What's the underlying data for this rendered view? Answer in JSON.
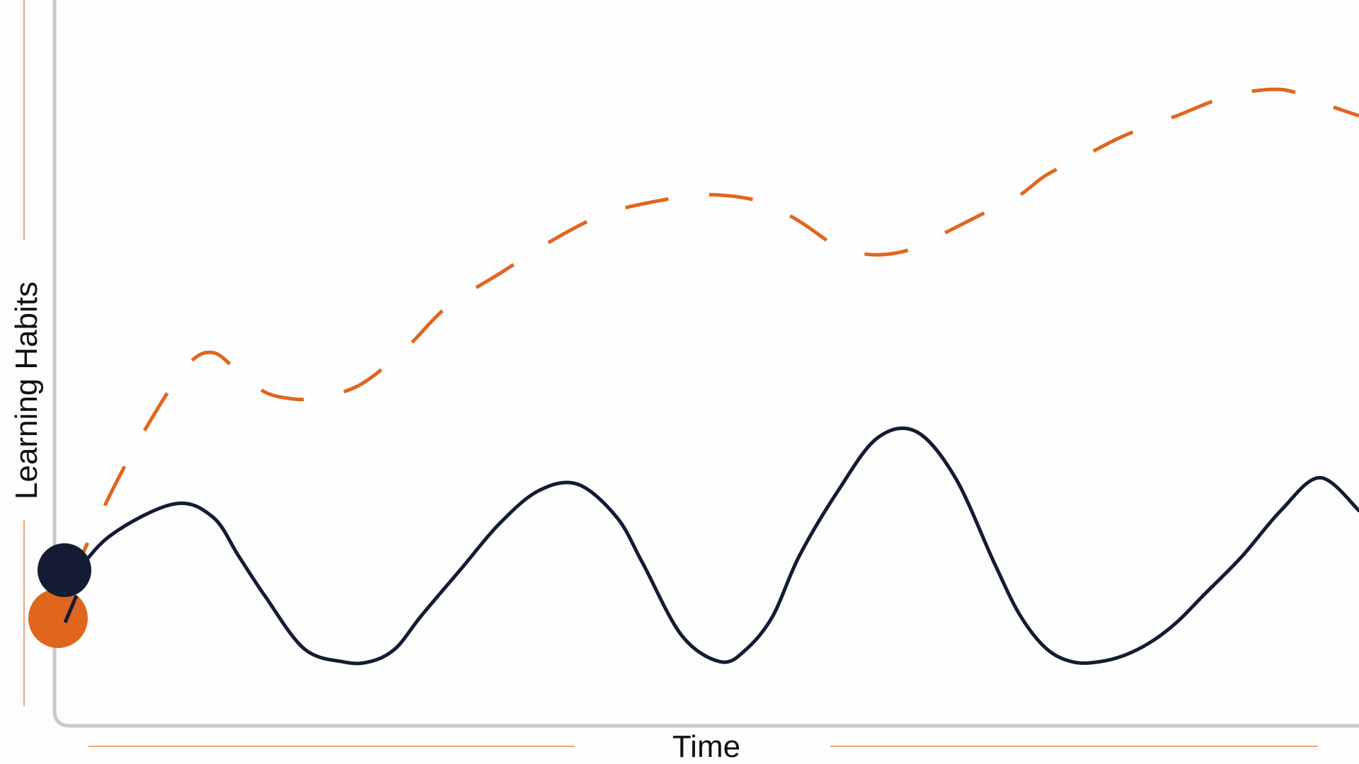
{
  "chart_data": {
    "type": "line",
    "title": "",
    "xlabel": "Time",
    "ylabel": "Learning Habits",
    "xlim": [
      0,
      100
    ],
    "ylim": [
      0,
      100
    ],
    "grid": false,
    "legend": "none",
    "series": [
      {
        "style": "solid",
        "color": "#141c33",
        "x": [
          1,
          4,
          9,
          12,
          14,
          16,
          19,
          22,
          24,
          26,
          28,
          31,
          34,
          37,
          40,
          43,
          45,
          48,
          51,
          53,
          55,
          57,
          60,
          63,
          66,
          69,
          72,
          74,
          76,
          78,
          80,
          82,
          84,
          86,
          88,
          91,
          94,
          97,
          100
        ],
        "y": [
          20,
          27,
          32,
          30,
          24,
          18,
          10,
          8,
          8,
          10,
          15,
          22,
          29,
          34,
          35,
          30,
          23,
          12,
          8,
          10,
          15,
          24,
          34,
          42,
          43,
          36,
          23,
          15,
          10,
          8,
          8,
          9,
          11,
          14,
          18,
          24,
          31,
          36,
          31
        ]
      },
      {
        "style": "dashed",
        "color": "#e0661e",
        "x": [
          1,
          4,
          7,
          10,
          12,
          14,
          16,
          18,
          20,
          22,
          24,
          27,
          30,
          34,
          38,
          42,
          46,
          50,
          54,
          57,
          60,
          62,
          64,
          66,
          68,
          70,
          72,
          74,
          76,
          79,
          82,
          86,
          90,
          94,
          97,
          100
        ],
        "y": [
          20,
          33,
          44,
          53,
          55,
          52,
          49,
          48,
          48,
          49,
          51,
          56,
          62,
          67,
          72,
          76,
          78,
          79,
          78,
          75,
          71,
          70,
          70,
          71,
          73,
          75,
          77,
          79,
          82,
          85,
          88,
          91,
          94,
          95,
          93,
          91
        ]
      }
    ]
  }
}
